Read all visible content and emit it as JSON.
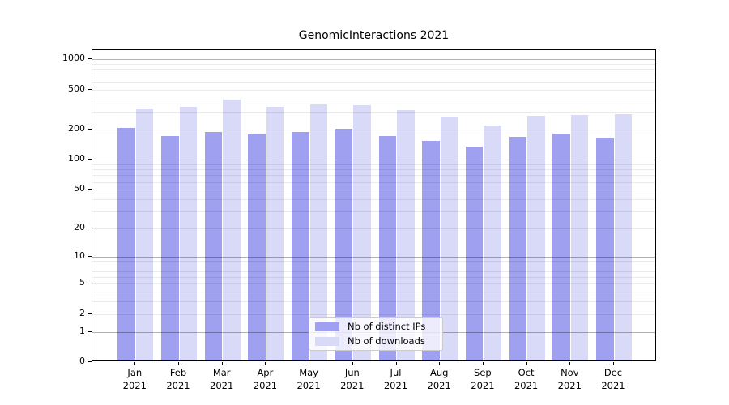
{
  "title": "GenomicInteractions 2021",
  "chart_data": {
    "type": "bar",
    "title": "GenomicInteractions 2021",
    "categories": [
      "Jan 2021",
      "Feb 2021",
      "Mar 2021",
      "Apr 2021",
      "May 2021",
      "Jun 2021",
      "Jul 2021",
      "Aug 2021",
      "Sep 2021",
      "Oct 2021",
      "Nov 2021",
      "Dec 2021"
    ],
    "series": [
      {
        "name": "Nb of distinct IPs",
        "color": "#a0a0f0",
        "values": [
          200,
          165,
          182,
          172,
          184,
          198,
          167,
          149,
          131,
          162,
          176,
          161
        ]
      },
      {
        "name": "Nb of downloads",
        "color": "#d9d9f8",
        "values": [
          310,
          327,
          380,
          322,
          342,
          335,
          301,
          258,
          212,
          265,
          271,
          274
        ]
      }
    ],
    "yscale": "log1p",
    "ylim": [
      0,
      1150
    ],
    "yticks": [
      1000,
      500,
      200,
      100,
      50,
      20,
      10,
      5,
      2,
      1,
      0
    ],
    "yticks_major_grid": [
      1000,
      100,
      10,
      1
    ],
    "yticks_minor_grid": [
      2,
      3,
      4,
      5,
      6,
      7,
      8,
      9,
      20,
      30,
      40,
      50,
      60,
      70,
      80,
      90,
      200,
      300,
      400,
      500,
      600,
      700,
      800,
      900
    ],
    "grid": "horizontal",
    "legend_position": "inside-bottom-center"
  }
}
